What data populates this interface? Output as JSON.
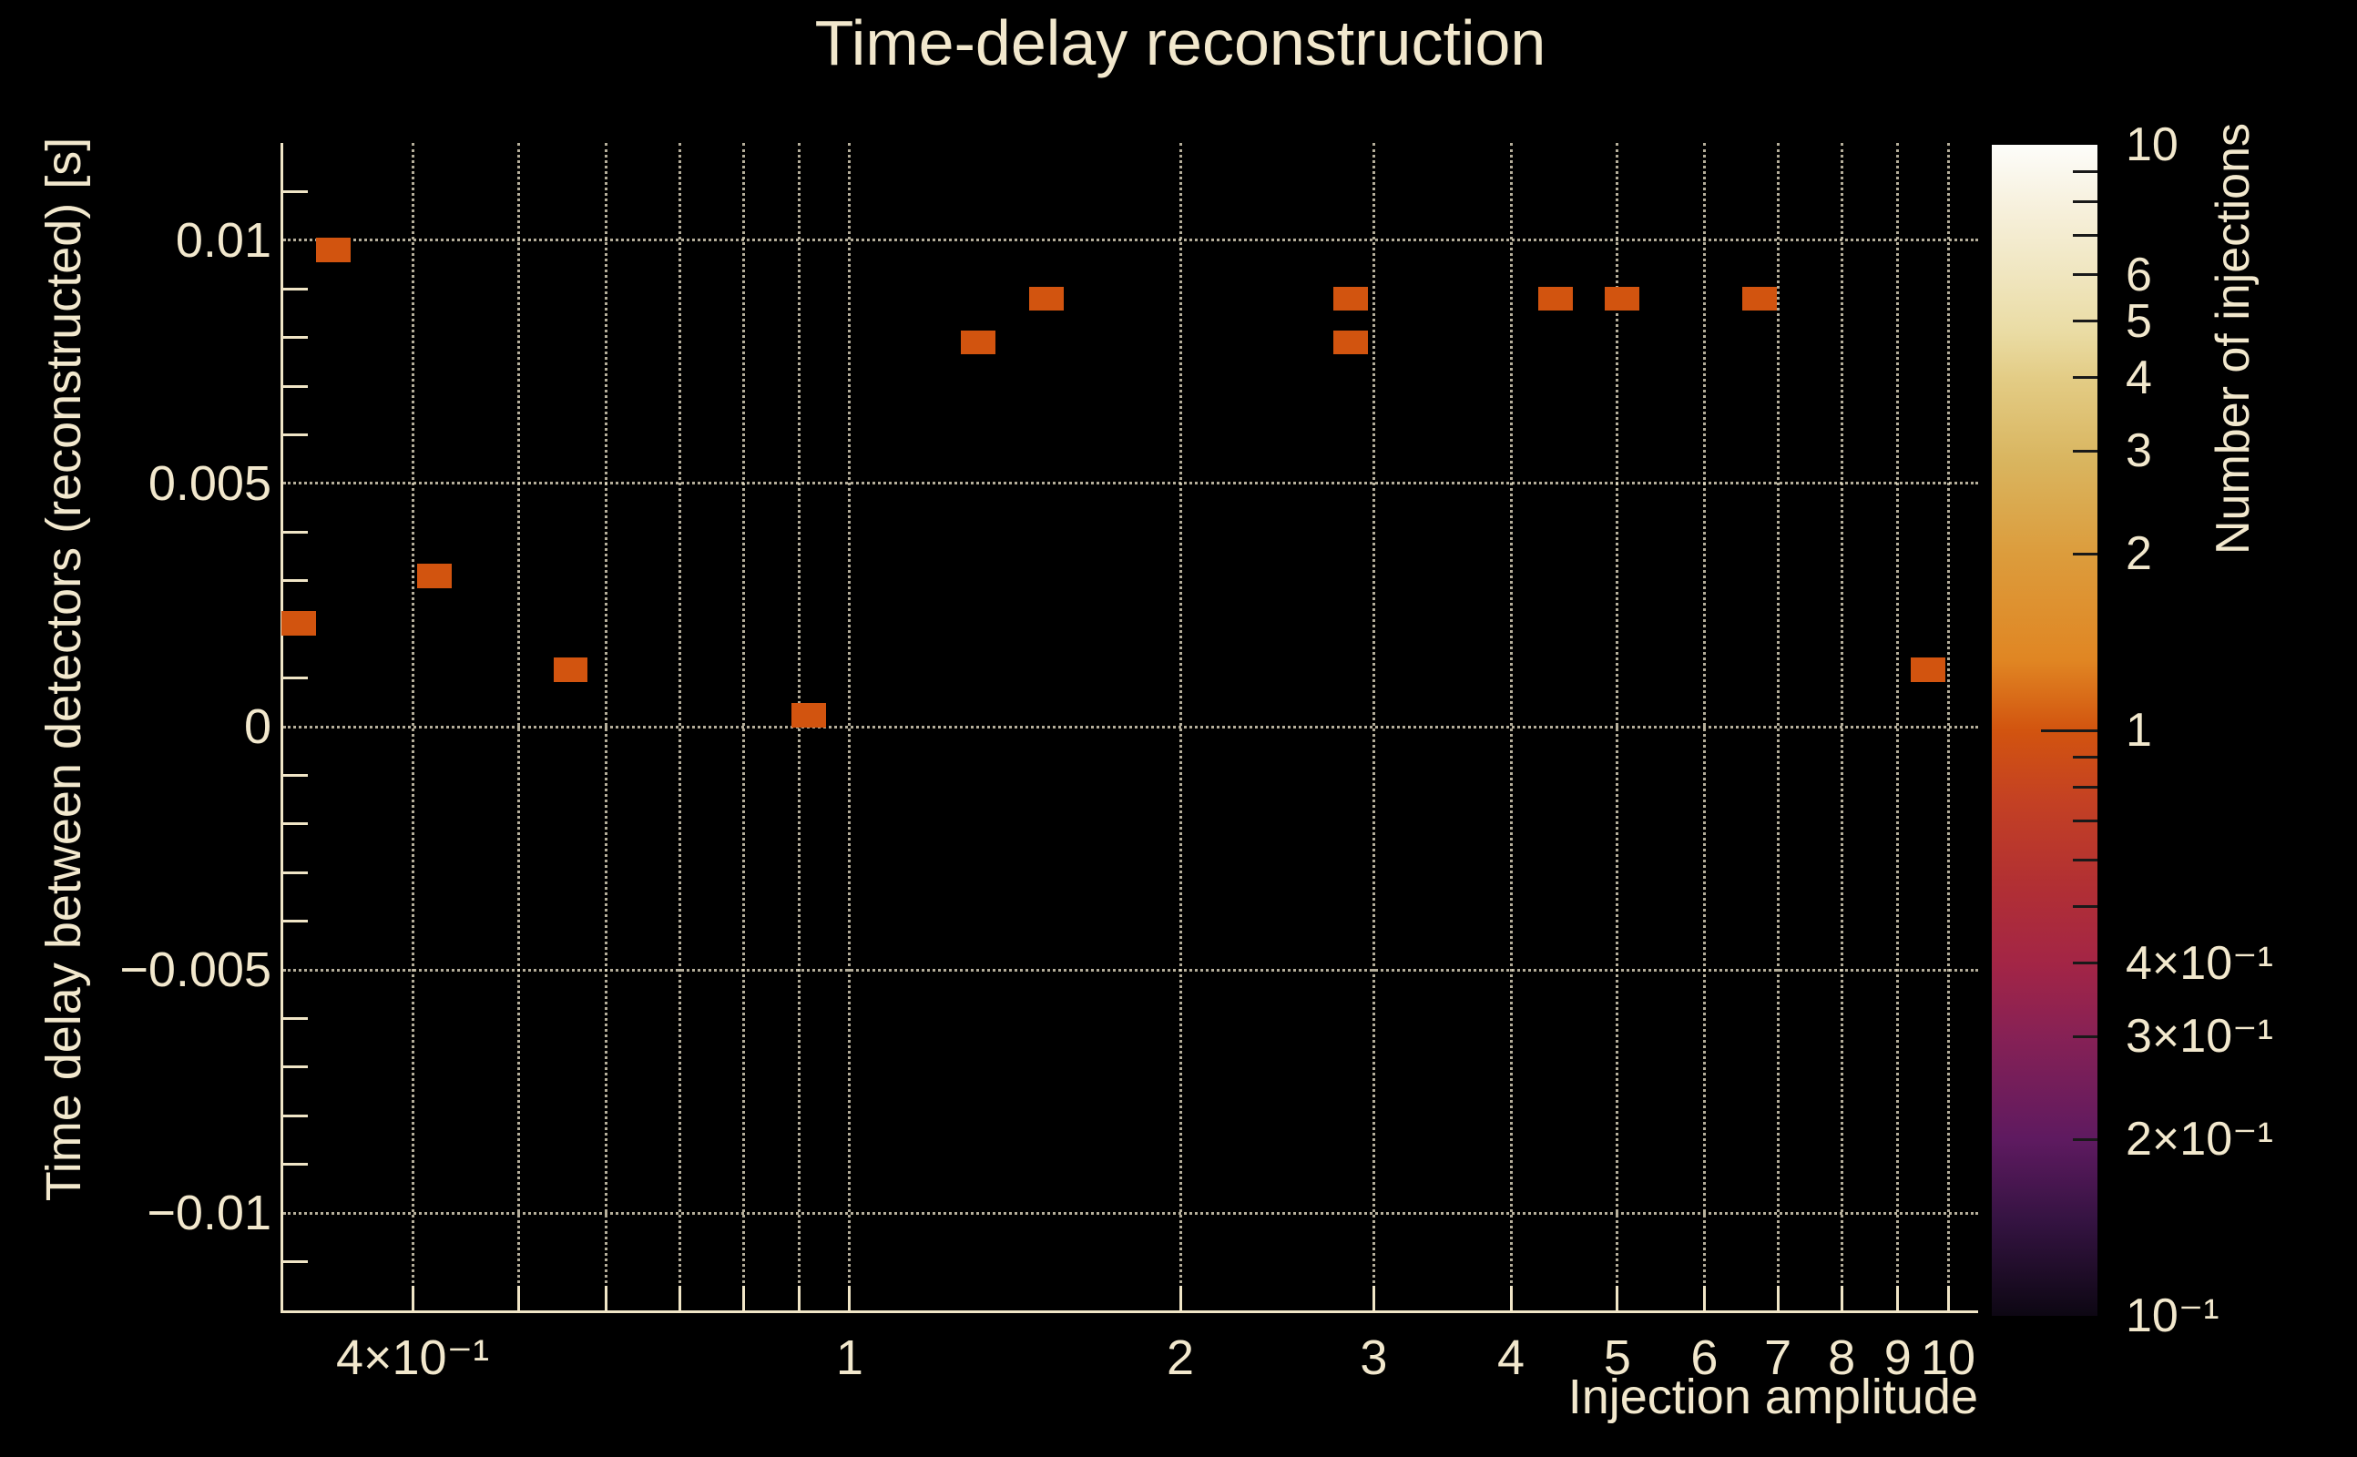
{
  "chart_data": {
    "type": "heatmap",
    "title": "Time-delay reconstruction",
    "xlabel": "Injection amplitude",
    "ylabel": "Time delay between detectors (reconstructed) [s]",
    "zlabel": "Number of injections",
    "x_scale": "log",
    "z_scale": "log",
    "xlim": [
      0.305,
      10.65
    ],
    "ylim": [
      -0.012,
      0.012
    ],
    "zlim": [
      0.1,
      10
    ],
    "grid": true,
    "x_gridlines": [
      0.4,
      0.5,
      0.6,
      0.7,
      0.8,
      0.9,
      1,
      2,
      3,
      4,
      5,
      6,
      7,
      8,
      9,
      10
    ],
    "x_tick_labels": [
      {
        "v": 0.4,
        "t": "4×10⁻¹"
      },
      {
        "v": 1,
        "t": "1"
      },
      {
        "v": 2,
        "t": "2"
      },
      {
        "v": 3,
        "t": "3"
      },
      {
        "v": 4,
        "t": "4"
      },
      {
        "v": 5,
        "t": "5"
      },
      {
        "v": 6,
        "t": "6"
      },
      {
        "v": 7,
        "t": "7"
      },
      {
        "v": 8,
        "t": "8"
      },
      {
        "v": 9,
        "t": "9"
      },
      {
        "v": 10,
        "t": "10"
      }
    ],
    "y_tick_labels": [
      {
        "v": 0.01,
        "t": "0.01"
      },
      {
        "v": 0.005,
        "t": "0.005"
      },
      {
        "v": 0,
        "t": "0"
      },
      {
        "v": -0.005,
        "t": "−0.005"
      },
      {
        "v": -0.01,
        "t": "−0.01"
      }
    ],
    "y_minor_step": 0.001,
    "x_bin_ratio": 1.075,
    "y_bin_size": 0.0005,
    "points": [
      {
        "x": 0.315,
        "y": 0.00212,
        "n": 1
      },
      {
        "x": 0.339,
        "y": 0.0098,
        "n": 1
      },
      {
        "x": 0.419,
        "y": 0.0031,
        "n": 1
      },
      {
        "x": 0.557,
        "y": 0.00117,
        "n": 1
      },
      {
        "x": 0.917,
        "y": 0.00023,
        "n": 1
      },
      {
        "x": 1.31,
        "y": 0.0079,
        "n": 1
      },
      {
        "x": 1.51,
        "y": 0.0088,
        "n": 1
      },
      {
        "x": 2.86,
        "y": 0.0088,
        "n": 1
      },
      {
        "x": 2.86,
        "y": 0.0079,
        "n": 1
      },
      {
        "x": 4.39,
        "y": 0.0088,
        "n": 1
      },
      {
        "x": 5.05,
        "y": 0.0088,
        "n": 1
      },
      {
        "x": 6.73,
        "y": 0.0088,
        "n": 1
      },
      {
        "x": 9.59,
        "y": 0.00117,
        "n": 1
      }
    ],
    "colors": {
      "background": "#000000",
      "text": "#f2e8cd",
      "axis": "#f0e5c6",
      "grid": "#f2e8cd",
      "point": "#d2540f"
    },
    "colorbar": {
      "labels": [
        {
          "v": 10,
          "t": "10"
        },
        {
          "v": 6,
          "t": "6"
        },
        {
          "v": 5,
          "t": "5"
        },
        {
          "v": 4,
          "t": "4"
        },
        {
          "v": 3,
          "t": "3"
        },
        {
          "v": 2,
          "t": "2"
        },
        {
          "v": 1,
          "t": "1"
        },
        {
          "v": 0.4,
          "t": "4×10⁻¹"
        },
        {
          "v": 0.3,
          "t": "3×10⁻¹"
        },
        {
          "v": 0.2,
          "t": "2×10⁻¹"
        },
        {
          "v": 0.1,
          "t": "10⁻¹"
        }
      ],
      "minor_ticks": [
        9,
        8,
        7,
        6,
        5,
        4,
        3,
        2,
        0.9,
        0.8,
        0.7,
        0.6,
        0.5,
        0.4,
        0.3,
        0.2
      ],
      "decade_ticks": [
        1
      ],
      "gradient": [
        {
          "t": 0.0,
          "c": "#fdfdfa"
        },
        {
          "t": 0.05,
          "c": "#f7f1de"
        },
        {
          "t": 0.11,
          "c": "#f0e6c0"
        },
        {
          "t": 0.16,
          "c": "#eadca4"
        },
        {
          "t": 0.2,
          "c": "#e3cc85"
        },
        {
          "t": 0.27,
          "c": "#d9b55f"
        },
        {
          "t": 0.35,
          "c": "#dc9c3c"
        },
        {
          "t": 0.44,
          "c": "#e08623"
        },
        {
          "t": 0.5,
          "c": "#d2540f"
        },
        {
          "t": 0.56,
          "c": "#c44123"
        },
        {
          "t": 0.63,
          "c": "#b23033"
        },
        {
          "t": 0.7,
          "c": "#a32546"
        },
        {
          "t": 0.76,
          "c": "#872155"
        },
        {
          "t": 0.85,
          "c": "#5e1a60"
        },
        {
          "t": 0.92,
          "c": "#341341"
        },
        {
          "t": 1.0,
          "c": "#0d0713"
        }
      ]
    }
  }
}
